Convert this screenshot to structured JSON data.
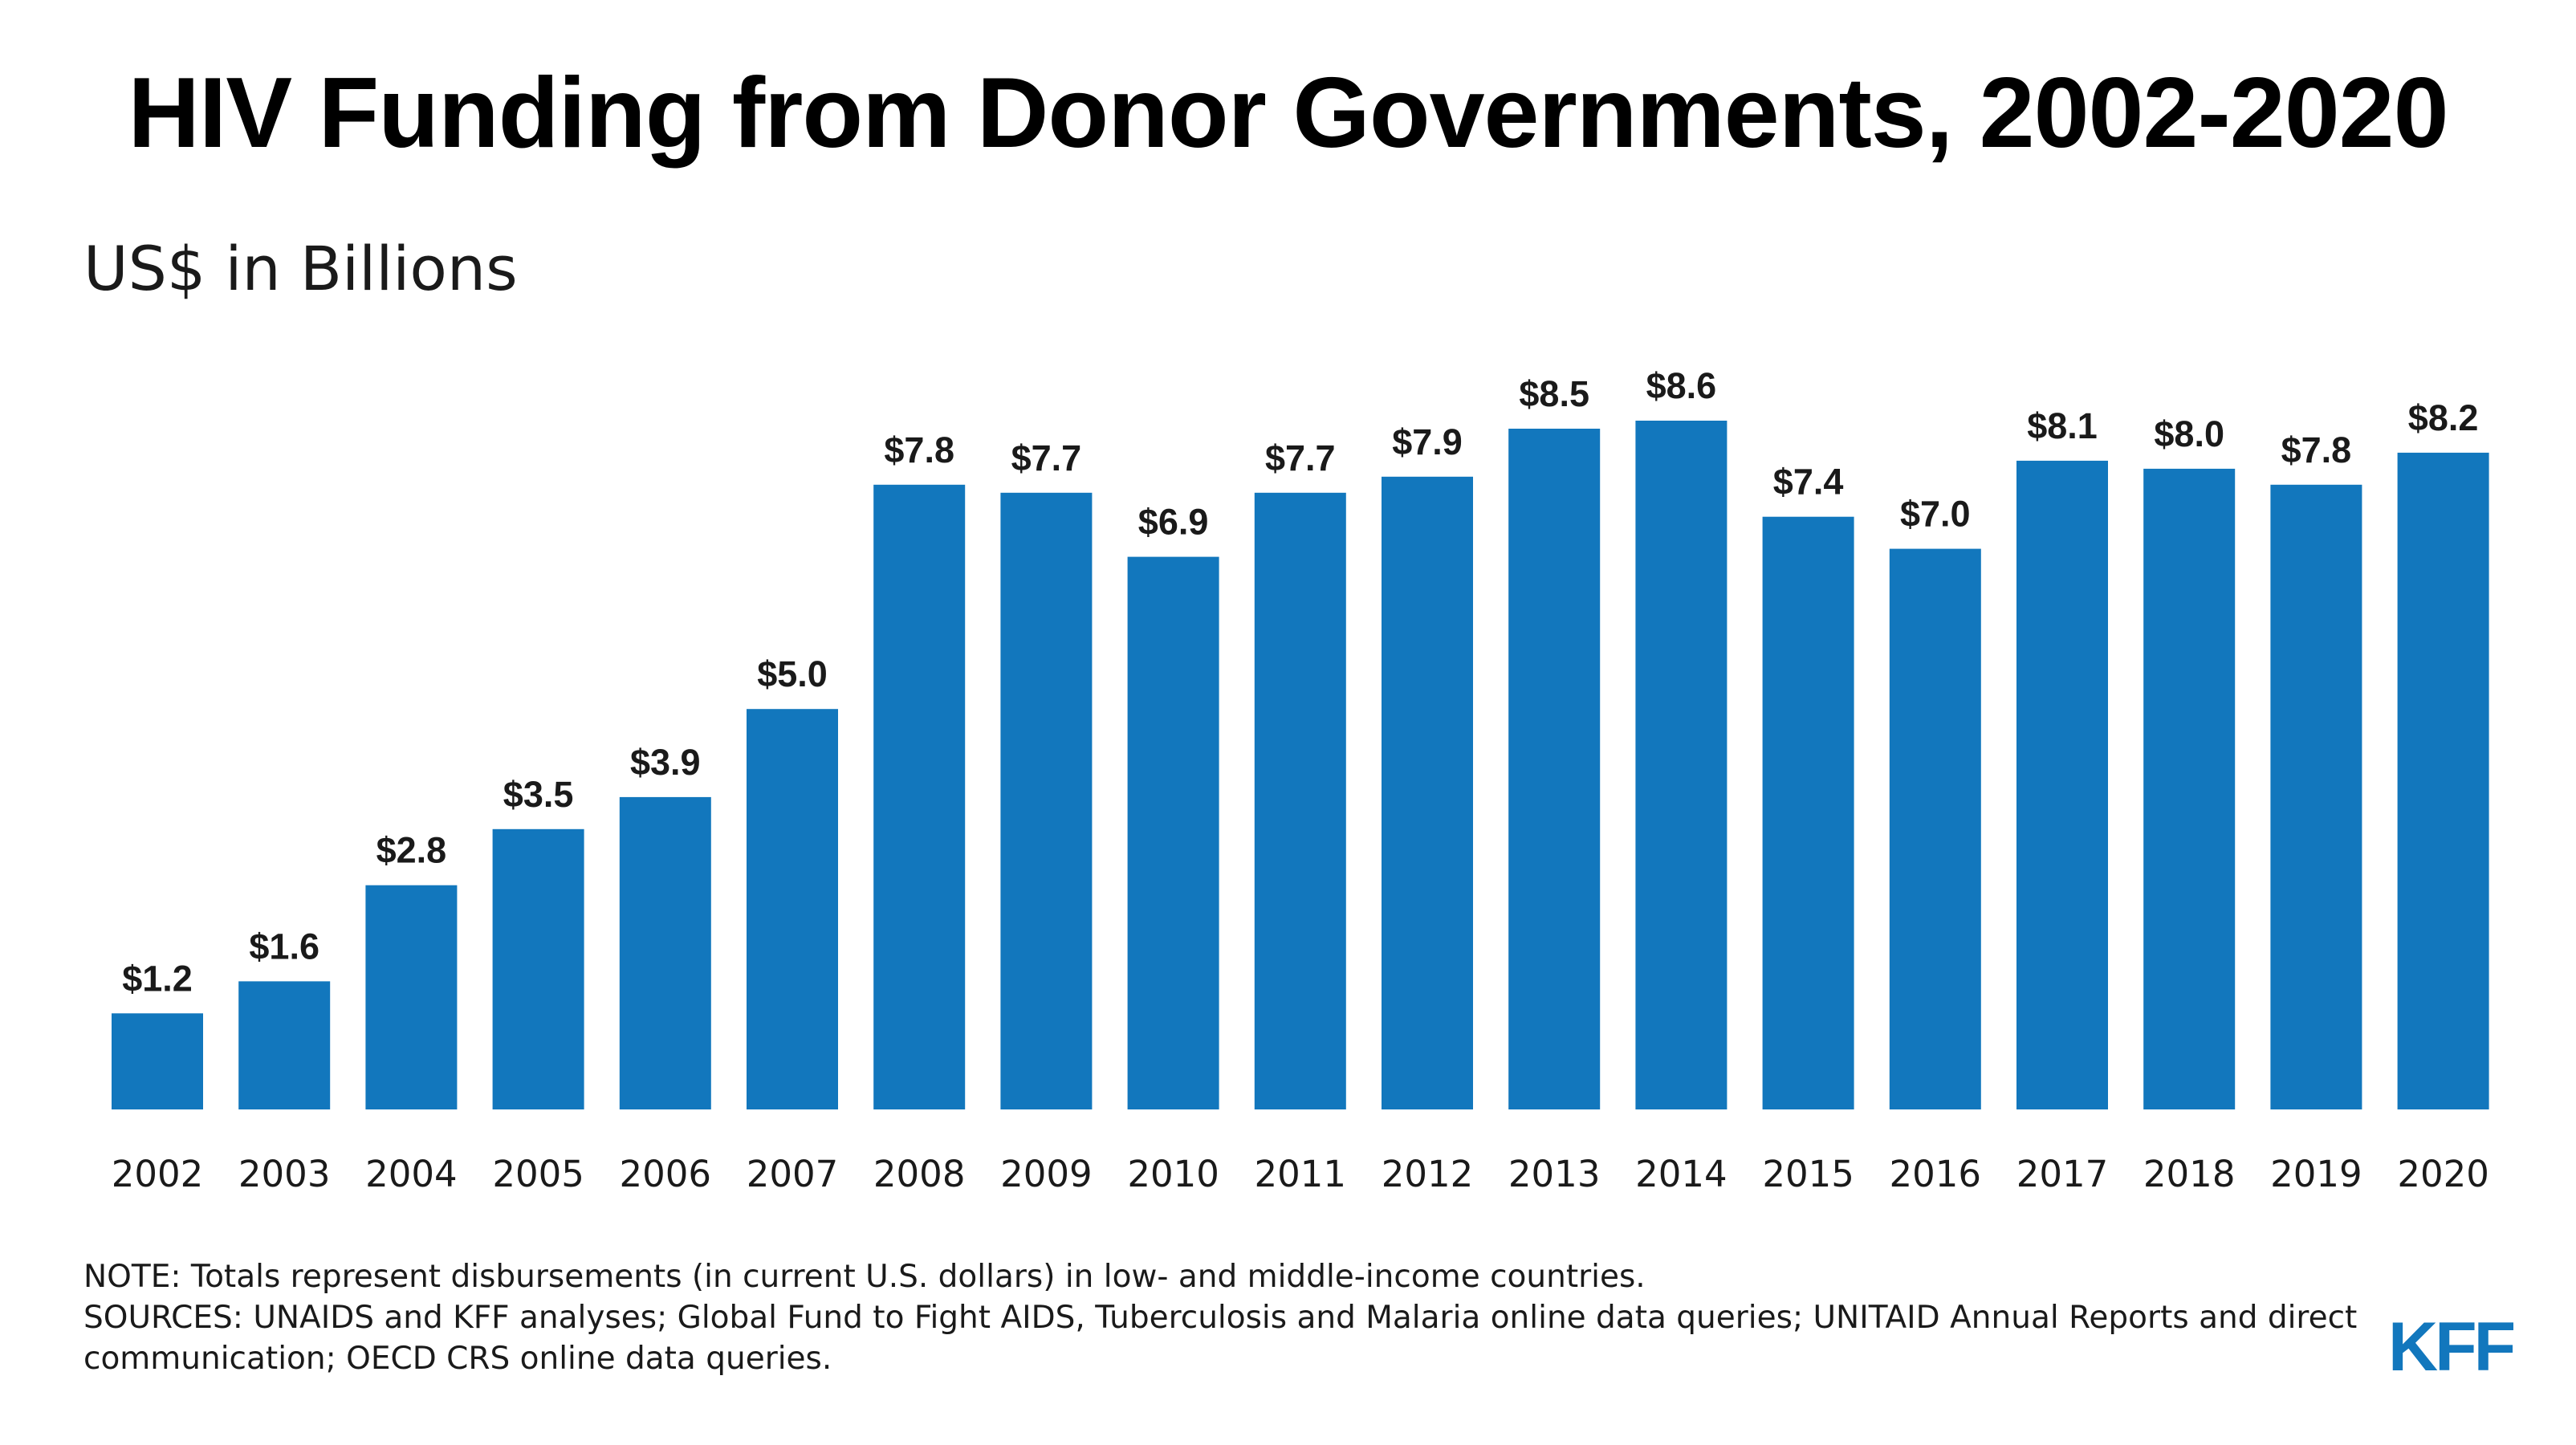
{
  "title": "HIV Funding from Donor Governments, 2002-2020",
  "subtitle": "US$ in Billions",
  "chart_data": {
    "type": "bar",
    "title": "HIV Funding from Donor Governments, 2002-2020",
    "ylabel": "US$ in Billions",
    "xlabel": "",
    "categories": [
      "2002",
      "2003",
      "2004",
      "2005",
      "2006",
      "2007",
      "2008",
      "2009",
      "2010",
      "2011",
      "2012",
      "2013",
      "2014",
      "2015",
      "2016",
      "2017",
      "2018",
      "2019",
      "2020"
    ],
    "values": [
      1.2,
      1.6,
      2.8,
      3.5,
      3.9,
      5.0,
      7.8,
      7.7,
      6.9,
      7.7,
      7.9,
      8.5,
      8.6,
      7.4,
      7.0,
      8.1,
      8.0,
      7.8,
      8.2
    ],
    "value_labels": [
      "$1.2",
      "$1.6",
      "$2.8",
      "$3.5",
      "$3.9",
      "$5.0",
      "$7.8",
      "$7.7",
      "$6.9",
      "$7.7",
      "$7.9",
      "$8.5",
      "$8.6",
      "$7.4",
      "$7.0",
      "$8.1",
      "$8.0",
      "$7.8",
      "$8.2"
    ],
    "ylim": [
      0,
      8.6
    ],
    "grid": false,
    "legend": "none",
    "bar_color": "#1277bd"
  },
  "notes": {
    "note": "NOTE: Totals represent disbursements (in current U.S. dollars) in low- and middle-income countries.",
    "sources": "SOURCES: UNAIDS and KFF analyses; Global Fund to Fight AIDS, Tuberculosis and Malaria online data queries; UNITAID Annual Reports and direct communication; OECD CRS online data queries."
  },
  "logo": {
    "text": "KFF",
    "color": "#1277bd"
  }
}
